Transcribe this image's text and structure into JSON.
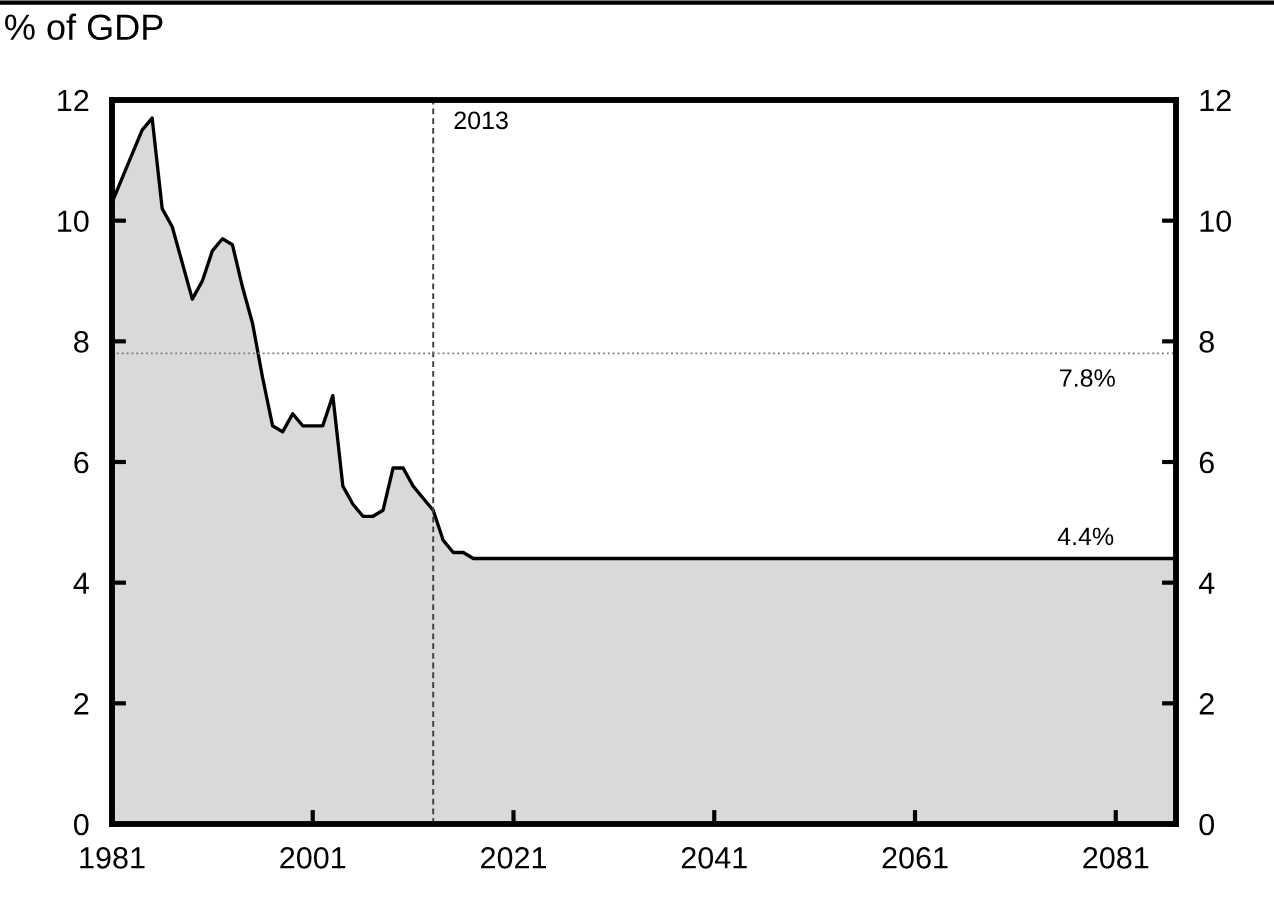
{
  "chart_data": {
    "type": "area",
    "title": "% of GDP",
    "x": [
      1981,
      1982,
      1984,
      1985,
      1986,
      1987,
      1988,
      1989,
      1990,
      1991,
      1992,
      1993,
      1994,
      1995,
      1996,
      1997,
      1998,
      1999,
      2000,
      2002,
      2003,
      2004,
      2005,
      2006,
      2007,
      2008,
      2009,
      2010,
      2011,
      2012,
      2013,
      2014,
      2015,
      2016,
      2017,
      2087
    ],
    "series": [
      {
        "color": "#d9d9d9",
        "values": [
          10.3,
          10.7,
          11.5,
          11.7,
          10.2,
          9.9,
          9.3,
          8.7,
          9.0,
          9.5,
          9.7,
          9.6,
          8.9,
          8.3,
          7.4,
          6.6,
          6.5,
          6.8,
          6.6,
          6.6,
          7.1,
          5.6,
          5.3,
          5.1,
          5.1,
          5.2,
          5.9,
          5.9,
          5.6,
          5.4,
          5.2,
          4.7,
          4.5,
          4.5,
          4.4,
          4.4
        ]
      }
    ],
    "xlim": [
      1981,
      2087
    ],
    "xticks": [
      1981,
      2001,
      2021,
      2041,
      2061,
      2081
    ],
    "ylim": [
      0,
      12
    ],
    "yticks": [
      0,
      2,
      4,
      6,
      8,
      10,
      12
    ],
    "y2lim": [
      0,
      12
    ],
    "y2ticks": [
      0,
      2,
      4,
      6,
      8,
      10,
      12
    ],
    "grid": false,
    "legend": false,
    "ref_lines": [
      {
        "axis": "x",
        "value": 2013,
        "label": "2013",
        "line_style": "dashed",
        "color": "#404040"
      },
      {
        "axis": "y",
        "value": 7.8,
        "label": "7.8%",
        "line_style": "dotted",
        "color": "#808080"
      }
    ],
    "annotations": [
      {
        "text": "4.4%",
        "x": 2078,
        "y": 4.4
      }
    ]
  }
}
